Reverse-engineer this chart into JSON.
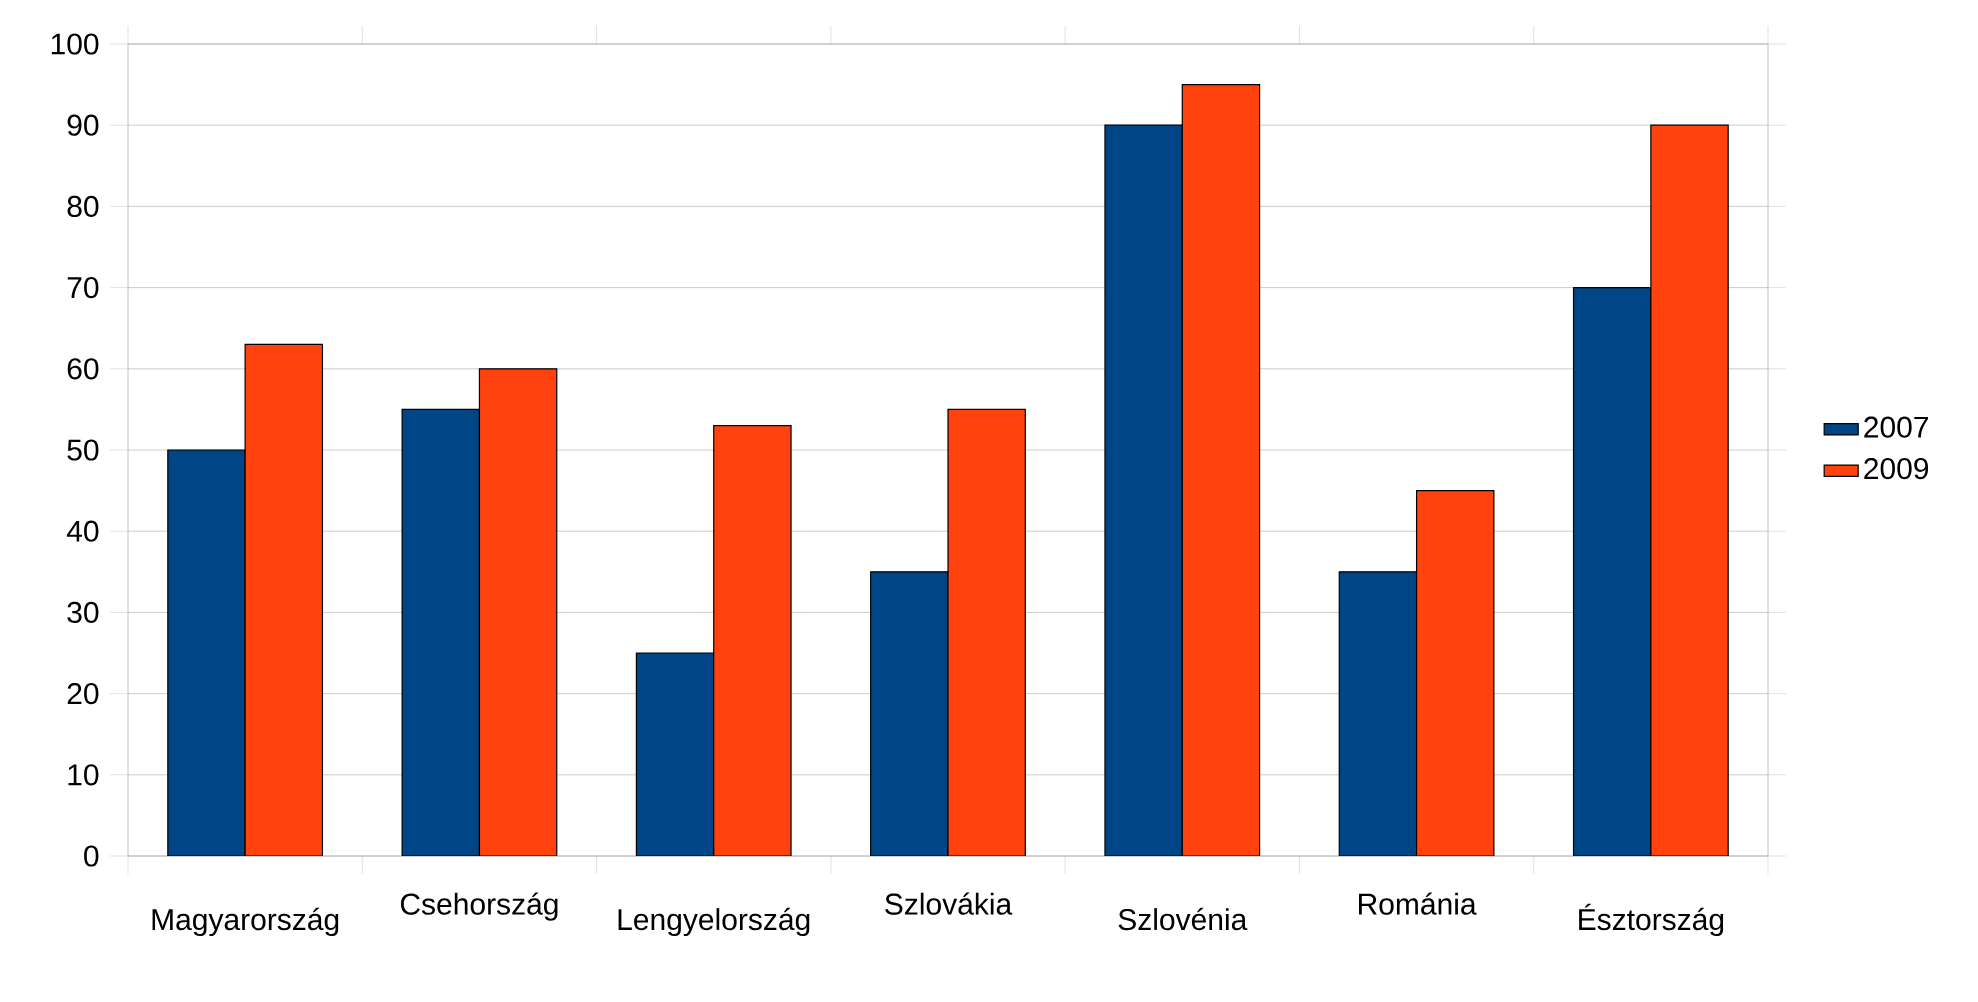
{
  "chart_data": {
    "type": "bar",
    "categories": [
      "Magyarország",
      "Csehország",
      "Lengyelország",
      "Szlovákia",
      "Szlovénia",
      "Románia",
      "Észtország"
    ],
    "series": [
      {
        "name": "2007",
        "color": "#004586",
        "values": [
          50,
          55,
          25,
          35,
          90,
          35,
          70
        ]
      },
      {
        "name": "2009",
        "color": "#ff420e",
        "values": [
          63,
          60,
          53,
          55,
          95,
          45,
          90
        ]
      }
    ],
    "ylim": [
      0,
      100
    ],
    "yticks": [
      0,
      10,
      20,
      30,
      40,
      50,
      60,
      70,
      80,
      90,
      100
    ],
    "grid": "y",
    "legend": "right"
  }
}
